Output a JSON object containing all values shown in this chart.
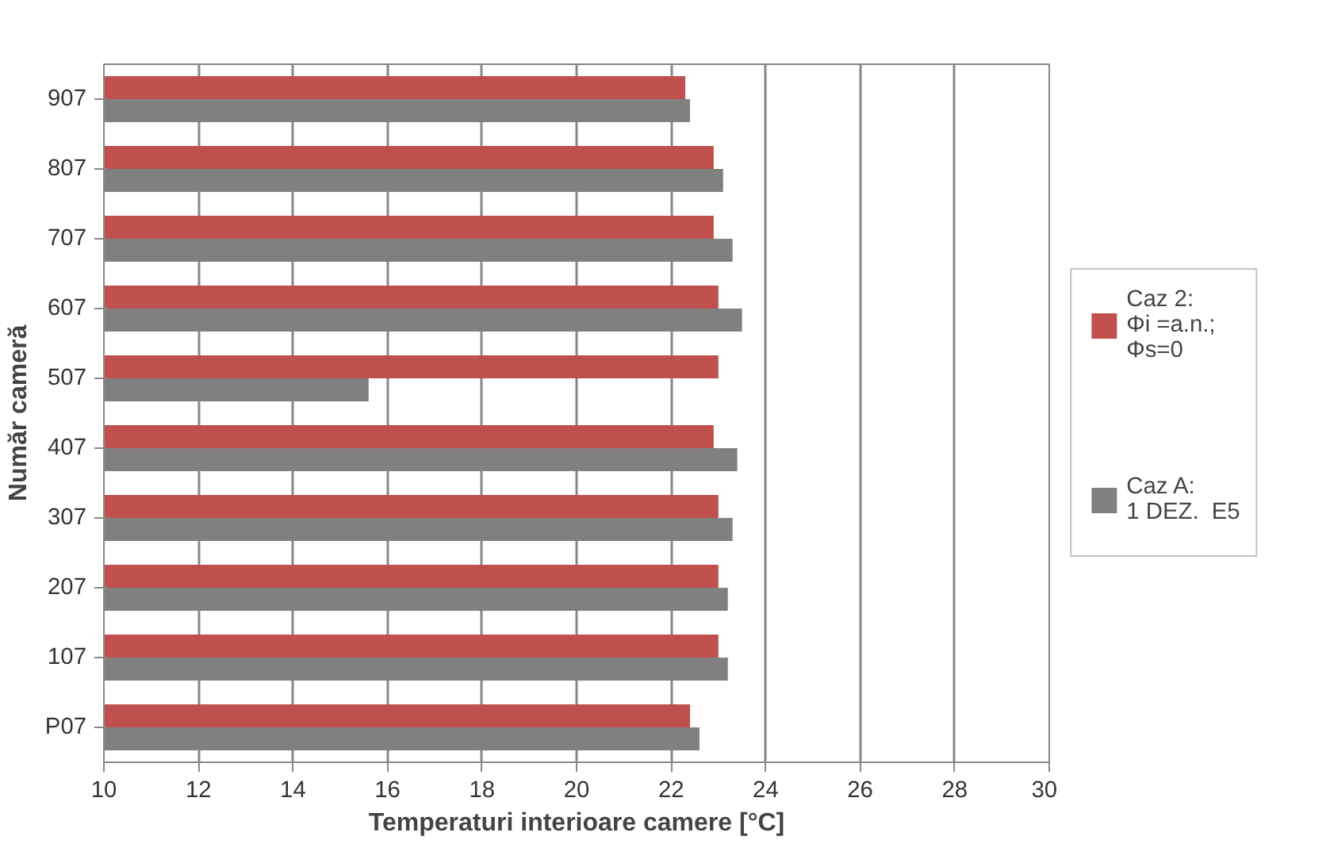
{
  "chart_data": {
    "type": "bar",
    "orientation": "horizontal",
    "xlabel": "Temperaturi interioare camere [°C]",
    "ylabel": "Număr cameră",
    "categories": [
      "907",
      "807",
      "707",
      "607",
      "507",
      "407",
      "307",
      "207",
      "107",
      "P07"
    ],
    "series": [
      {
        "name": "Caz 2:\nΦi =a.n.;\nΦs=0",
        "color": "#c0504d",
        "values": [
          22.3,
          22.9,
          22.9,
          23.0,
          23.0,
          22.9,
          23.0,
          23.0,
          23.0,
          22.4
        ]
      },
      {
        "name": "Caz A:\n1 DEZ.  E5",
        "color": "#808080",
        "values": [
          22.4,
          23.1,
          23.3,
          23.5,
          15.6,
          23.4,
          23.3,
          23.2,
          23.2,
          22.6
        ]
      }
    ],
    "xlim": [
      10,
      30
    ],
    "xticks": [
      10,
      12,
      14,
      16,
      18,
      20,
      22,
      24,
      26,
      28,
      30
    ],
    "grid": "x",
    "legend": "right"
  }
}
